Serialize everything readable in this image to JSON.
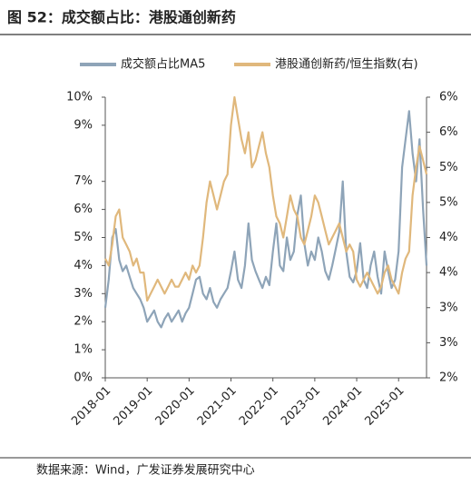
{
  "chart_data": {
    "type": "line",
    "title": "图 52：成交额占比：港股通创新药",
    "source": "数据来源：Wind，广发证券发展研究中心",
    "legend_position": "top",
    "x": [
      "2018-01",
      "2018-02",
      "2018-03",
      "2018-04",
      "2018-05",
      "2018-06",
      "2018-07",
      "2018-08",
      "2018-09",
      "2018-10",
      "2018-11",
      "2018-12",
      "2019-01",
      "2019-02",
      "2019-03",
      "2019-04",
      "2019-05",
      "2019-06",
      "2019-07",
      "2019-08",
      "2019-09",
      "2019-10",
      "2019-11",
      "2019-12",
      "2020-01",
      "2020-02",
      "2020-03",
      "2020-04",
      "2020-05",
      "2020-06",
      "2020-07",
      "2020-08",
      "2020-09",
      "2020-10",
      "2020-11",
      "2020-12",
      "2021-01",
      "2021-02",
      "2021-03",
      "2021-04",
      "2021-05",
      "2021-06",
      "2021-07",
      "2021-08",
      "2021-09",
      "2021-10",
      "2021-11",
      "2021-12",
      "2022-01",
      "2022-02",
      "2022-03",
      "2022-04",
      "2022-05",
      "2022-06",
      "2022-07",
      "2022-08",
      "2022-09",
      "2022-10",
      "2022-11",
      "2022-12",
      "2023-01",
      "2023-02",
      "2023-03",
      "2023-04",
      "2023-05",
      "2023-06",
      "2023-07",
      "2023-08",
      "2023-09",
      "2023-10",
      "2023-11",
      "2023-12",
      "2024-01",
      "2024-02",
      "2024-03",
      "2024-04",
      "2024-05",
      "2024-06",
      "2024-07",
      "2024-08",
      "2024-09",
      "2024-10",
      "2024-11",
      "2024-12",
      "2025-01",
      "2025-02",
      "2025-03",
      "2025-04",
      "2025-05",
      "2025-06",
      "2025-07",
      "2025-08",
      "2025-09"
    ],
    "xticks": [
      "2018-01",
      "2019-01",
      "2020-01",
      "2021-01",
      "2022-01",
      "2023-01",
      "2024-01",
      "2025-01"
    ],
    "ylim": [
      0,
      10
    ],
    "yticks": [
      {
        "value": 0,
        "label": "0%"
      },
      {
        "value": 1,
        "label": "1%"
      },
      {
        "value": 2,
        "label": "2%"
      },
      {
        "value": 3,
        "label": "3%"
      },
      {
        "value": 4,
        "label": "4%"
      },
      {
        "value": 5,
        "label": "5%"
      },
      {
        "value": 6,
        "label": "6%"
      },
      {
        "value": 7,
        "label": "7%"
      },
      {
        "value": 9,
        "label": "9%"
      },
      {
        "value": 10,
        "label": "10%"
      }
    ],
    "y2lim": [
      2,
      6
    ],
    "y2ticks": [
      {
        "value": 2,
        "label": "2%"
      },
      {
        "value": 2.5,
        "label": "3%"
      },
      {
        "value": 3,
        "label": "3%"
      },
      {
        "value": 3.5,
        "label": "4%"
      },
      {
        "value": 4,
        "label": "4%"
      },
      {
        "value": 4.5,
        "label": "5%"
      },
      {
        "value": 5,
        "label": "5%"
      },
      {
        "value": 5.5,
        "label": "6%"
      },
      {
        "value": 6,
        "label": "6%"
      }
    ],
    "series": [
      {
        "name": "成交额占比MA5",
        "color": "#8ea4b8",
        "values": [
          2.5,
          3.5,
          5.0,
          5.3,
          4.2,
          3.8,
          4.0,
          3.6,
          3.2,
          3.0,
          2.8,
          2.5,
          2.0,
          2.2,
          2.4,
          2.0,
          1.8,
          2.1,
          2.3,
          2.0,
          2.2,
          2.4,
          2.0,
          2.3,
          2.5,
          3.0,
          3.5,
          3.6,
          3.0,
          2.8,
          3.2,
          2.7,
          2.5,
          2.8,
          3.0,
          3.2,
          3.8,
          4.5,
          3.5,
          3.2,
          4.0,
          5.5,
          4.2,
          3.8,
          3.5,
          3.2,
          3.6,
          3.3,
          4.5,
          5.5,
          4.0,
          3.8,
          5.0,
          4.2,
          4.5,
          5.8,
          6.5,
          4.8,
          4.0,
          4.5,
          4.2,
          5.0,
          4.5,
          3.8,
          3.5,
          4.0,
          4.6,
          5.2,
          7.0,
          4.5,
          3.6,
          3.4,
          3.8,
          4.8,
          3.5,
          3.2,
          4.0,
          4.5,
          3.6,
          3.0,
          4.5,
          3.8,
          3.2,
          3.5,
          4.5,
          7.5,
          8.5,
          9.5,
          8.0,
          7.0,
          8.5,
          6.0,
          4.0
        ]
      },
      {
        "name": "港股通创新药/恒生指数(右)",
        "color": "#e0b87c",
        "axis": "y2",
        "values": [
          3.7,
          3.6,
          3.9,
          4.3,
          4.4,
          4.0,
          3.9,
          3.8,
          3.6,
          3.7,
          3.5,
          3.5,
          3.1,
          3.2,
          3.3,
          3.4,
          3.3,
          3.2,
          3.3,
          3.4,
          3.3,
          3.3,
          3.4,
          3.5,
          3.4,
          3.6,
          3.5,
          3.6,
          4.0,
          4.5,
          4.8,
          4.6,
          4.4,
          4.6,
          4.8,
          4.9,
          5.6,
          6.0,
          5.7,
          5.4,
          5.2,
          5.5,
          5.0,
          5.1,
          5.3,
          5.5,
          5.2,
          5.0,
          4.6,
          4.3,
          4.2,
          4.0,
          4.3,
          4.6,
          4.4,
          4.3,
          4.0,
          3.9,
          4.1,
          4.3,
          4.6,
          4.5,
          4.3,
          4.1,
          3.9,
          4.0,
          4.1,
          4.2,
          4.0,
          3.8,
          3.9,
          3.8,
          3.4,
          3.3,
          3.4,
          3.5,
          3.4,
          3.3,
          3.2,
          3.3,
          3.5,
          3.6,
          3.4,
          3.3,
          3.2,
          3.5,
          3.7,
          3.8,
          4.6,
          5.0,
          5.3,
          5.1,
          4.9
        ]
      }
    ]
  }
}
